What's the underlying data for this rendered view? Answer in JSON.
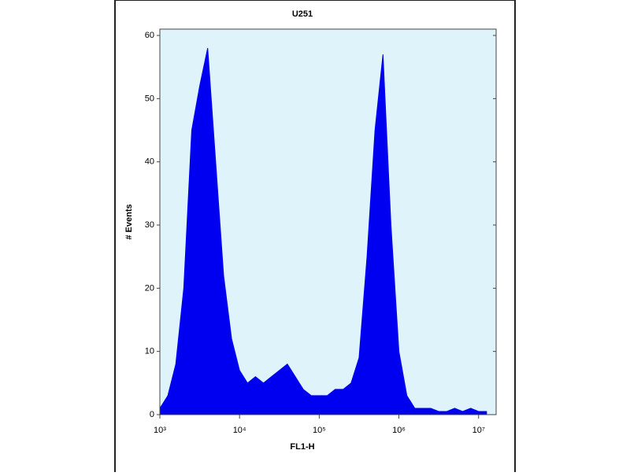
{
  "chart_data": {
    "type": "area",
    "title": "U251",
    "x_label": "FL1-H",
    "y_label": "# Events",
    "x": [
      1000,
      1259,
      1585,
      1995,
      2512,
      3162,
      3981,
      5012,
      6310,
      7943,
      10000,
      12589,
      15849,
      19953,
      25119,
      31623,
      39811,
      50119,
      63096,
      79433,
      100000,
      125893,
      158489,
      199526,
      251189,
      316228,
      398107,
      501187,
      630957,
      794328,
      1000000,
      1258925,
      1584893,
      1995262,
      2511886,
      3162278,
      3981072,
      5011872,
      6309573,
      7943282,
      10000000,
      12589254
    ],
    "values": [
      1,
      3,
      8,
      20,
      45,
      52,
      58,
      40,
      22,
      12,
      7,
      5,
      6,
      5,
      6,
      7,
      8,
      6,
      4,
      3,
      3,
      3,
      4,
      4,
      5,
      9,
      25,
      45,
      57,
      30,
      10,
      3,
      1,
      1,
      1,
      0.5,
      0.5,
      1,
      0.5,
      1,
      0.5,
      0.5
    ],
    "color": "#0000f0",
    "plot_background": "#dff3fa",
    "xscale": "log",
    "xlim": [
      1000,
      16600000
    ],
    "xticks": [
      {
        "value": 1000,
        "label": "10³"
      },
      {
        "value": 10000,
        "label": "10⁴"
      },
      {
        "value": 100000,
        "label": "10⁵"
      },
      {
        "value": 1000000,
        "label": "10⁶"
      },
      {
        "value": 10000000,
        "label": "10⁷"
      }
    ],
    "ylim": [
      0,
      61
    ],
    "yticks": [
      0,
      10,
      20,
      30,
      40,
      50,
      60
    ]
  }
}
